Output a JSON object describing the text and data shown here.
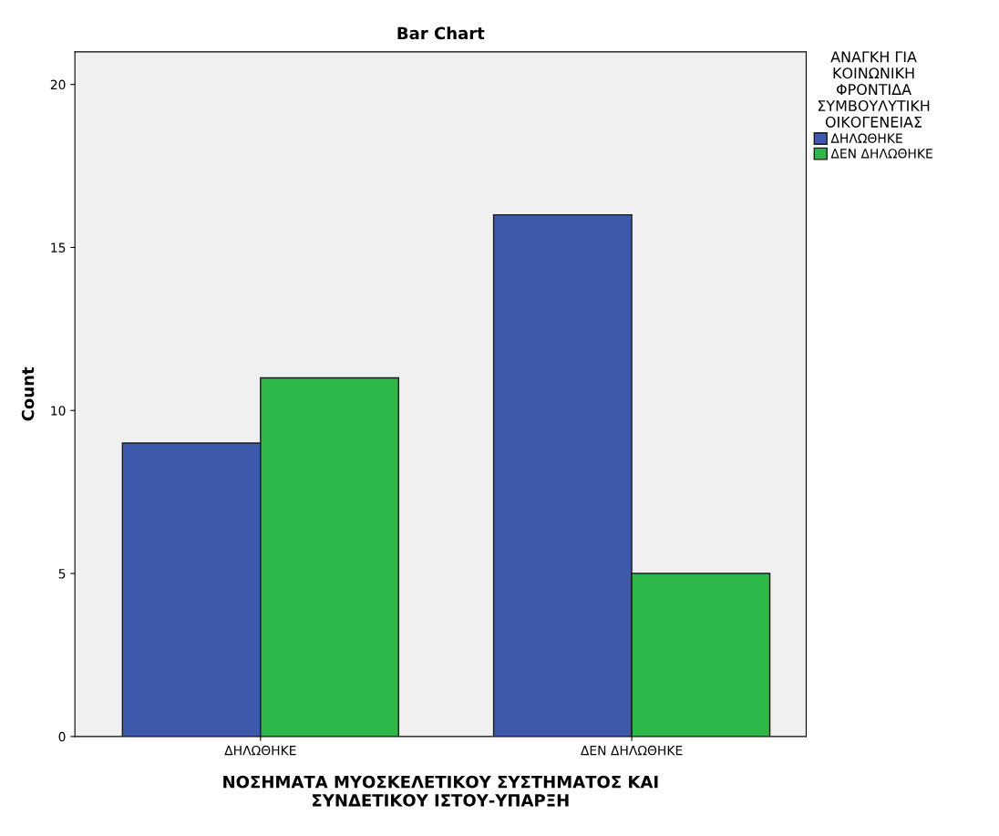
{
  "chart_data": {
    "type": "bar",
    "title": "Bar Chart",
    "xlabel": "ΝΟΣΗΜΑΤΑ ΜΥΟΣΚΕΛΕΤΙΚΟΥ ΣΥΣΤΗΜΑΤΟΣ ΚΑΙ\nΣΥΝΔΕΤΙΚΟΥ ΙΣΤΟΥ-ΥΠΑΡΞΗ",
    "ylabel": "Count",
    "legend_title": "ΑΝΑΓΚΗ ΓΙΑ\nΚΟΙΝΩΝΙΚΗ\nΦΡΟΝΤΙΔΑ\nΣΥΜΒΟΥΛΥΤΙΚΗ\nΟΙΚΟΓΕΝΕΙΑΣ",
    "categories": [
      "ΔΗΛΩΘΗΚΕ",
      "ΔΕΝ ΔΗΛΩΘΗΚΕ"
    ],
    "series": [
      {
        "name": "ΔΗΛΩΘΗΚΕ",
        "color": "#3e58ac",
        "values": [
          9,
          16
        ]
      },
      {
        "name": "ΔΕΝ ΔΗΛΩΘΗΚΕ",
        "color": "#2fb84a",
        "values": [
          11,
          5
        ]
      }
    ],
    "ylim": [
      0,
      21
    ],
    "yticks": [
      0,
      5,
      10,
      15,
      20
    ],
    "grid": false,
    "legend": "top right"
  }
}
